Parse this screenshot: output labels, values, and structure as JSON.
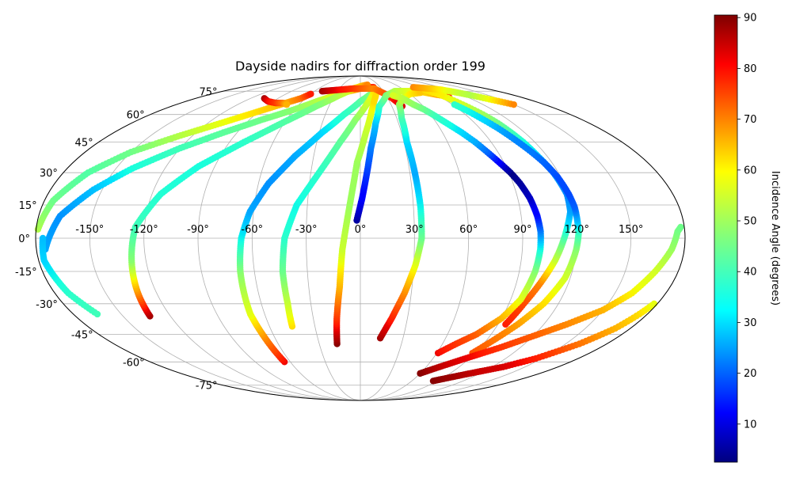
{
  "chart_data": {
    "type": "scatter",
    "projection": "mollweide",
    "title": "Dayside nadirs for diffraction order 199",
    "lon_ticks": [
      -150,
      -120,
      -90,
      -60,
      -30,
      0,
      30,
      60,
      90,
      120,
      150
    ],
    "lat_ticks": [
      -75,
      -60,
      -45,
      -30,
      -15,
      0,
      15,
      30,
      45,
      60,
      75
    ],
    "lon_tick_labels": [
      "-150°",
      "-120°",
      "-90°",
      "-60°",
      "-30°",
      "0°",
      "30°",
      "60°",
      "90°",
      "120°",
      "150°"
    ],
    "lat_tick_labels": [
      "-75°",
      "-60°",
      "-45°",
      "-30°",
      "-15°",
      "0°",
      "15°",
      "30°",
      "45°",
      "60°",
      "75°"
    ],
    "grid": true,
    "colorbar": {
      "label": "Incidence Angle (degrees)",
      "range": [
        2.5,
        90.5
      ],
      "colormap": "jet",
      "ticks": [
        10,
        20,
        30,
        40,
        50,
        60,
        70,
        80,
        90
      ],
      "tick_labels": [
        "10",
        "20",
        "30",
        "40",
        "50",
        "60",
        "70",
        "80",
        "90"
      ]
    },
    "series": [
      {
        "points": [
          [
            -179,
            4,
            52
          ],
          [
            -175,
            17,
            45
          ],
          [
            -165,
            30,
            42
          ],
          [
            -150,
            40,
            45
          ],
          [
            -130,
            48,
            52
          ],
          [
            -110,
            55,
            58
          ],
          [
            -90,
            62,
            62
          ],
          [
            -75,
            67,
            66
          ],
          [
            -65,
            70,
            72
          ],
          [
            -60,
            73,
            80
          ]
        ]
      },
      {
        "points": [
          [
            -175,
            -5,
            28
          ],
          [
            -168,
            10,
            26
          ],
          [
            -155,
            22,
            30
          ],
          [
            -140,
            32,
            36
          ],
          [
            -120,
            42,
            40
          ],
          [
            -100,
            50,
            43
          ],
          [
            -80,
            57,
            45
          ],
          [
            -60,
            63,
            48
          ],
          [
            -45,
            68,
            52
          ],
          [
            -30,
            72,
            58
          ],
          [
            -15,
            75,
            64
          ],
          [
            0,
            77,
            70
          ],
          [
            10,
            78,
            76
          ],
          [
            20,
            78,
            80
          ]
        ]
      },
      {
        "points": [
          [
            -165,
            -35,
            40
          ],
          [
            -172,
            -25,
            38
          ],
          [
            -177,
            -10,
            32
          ],
          [
            -176,
            0,
            30
          ]
        ]
      },
      {
        "points": [
          [
            -133,
            -36,
            88
          ],
          [
            -131,
            -25,
            70
          ],
          [
            -128,
            -10,
            48
          ],
          [
            -125,
            5,
            40
          ],
          [
            -115,
            20,
            37
          ],
          [
            -100,
            33,
            36
          ],
          [
            -80,
            45,
            38
          ],
          [
            -60,
            56,
            42
          ],
          [
            -42,
            65,
            46
          ],
          [
            -25,
            72,
            52
          ],
          [
            -10,
            77,
            58
          ],
          [
            2,
            79,
            64
          ],
          [
            12,
            80,
            70
          ]
        ]
      },
      {
        "points": [
          [
            -65,
            -60,
            82
          ],
          [
            -67,
            -47,
            70
          ],
          [
            -69,
            -35,
            58
          ],
          [
            -68,
            -15,
            48
          ],
          [
            -66,
            0,
            35
          ],
          [
            -62,
            12,
            28
          ],
          [
            -54,
            25,
            26
          ],
          [
            -42,
            38,
            28
          ],
          [
            -28,
            50,
            32
          ],
          [
            -14,
            60,
            38
          ],
          [
            0,
            68,
            42
          ],
          [
            10,
            72,
            46
          ],
          [
            20,
            75,
            48
          ]
        ]
      },
      {
        "points": [
          [
            -45,
            -41,
            62
          ],
          [
            -44,
            -30,
            55
          ],
          [
            -44,
            -15,
            45
          ],
          [
            -42,
            0,
            38
          ],
          [
            -36,
            15,
            35
          ],
          [
            -25,
            30,
            38
          ],
          [
            -14,
            45,
            43
          ],
          [
            -4,
            57,
            48
          ],
          [
            6,
            66,
            54
          ],
          [
            14,
            72,
            58
          ],
          [
            20,
            76,
            62
          ]
        ]
      },
      {
        "points": [
          [
            -17,
            -50,
            90
          ],
          [
            -15,
            -37,
            78
          ],
          [
            -12,
            -22,
            66
          ],
          [
            -10,
            -5,
            55
          ],
          [
            -6,
            15,
            50
          ],
          [
            -2,
            35,
            50
          ],
          [
            4,
            50,
            54
          ],
          [
            10,
            62,
            58
          ],
          [
            14,
            68,
            62
          ],
          [
            18,
            72,
            62
          ]
        ]
      },
      {
        "points": [
          [
            -105,
            70,
            88
          ],
          [
            -95,
            68,
            82
          ],
          [
            -85,
            67,
            78
          ],
          [
            -78,
            67,
            72
          ],
          [
            -72,
            66,
            66
          ]
        ]
      },
      {
        "points": [
          [
            -50,
            75,
            88
          ],
          [
            -30,
            76,
            82
          ],
          [
            -10,
            77,
            78
          ],
          [
            0,
            77,
            75
          ],
          [
            20,
            77,
            70
          ],
          [
            30,
            73,
            75
          ],
          [
            35,
            70,
            80
          ],
          [
            40,
            65,
            84
          ]
        ]
      },
      {
        "points": [
          [
            -2,
            8,
            5
          ],
          [
            1,
            18,
            12
          ],
          [
            4,
            30,
            18
          ],
          [
            7,
            42,
            24
          ],
          [
            12,
            55,
            30
          ],
          [
            18,
            65,
            38
          ],
          [
            30,
            72,
            46
          ],
          [
            45,
            75,
            52
          ],
          [
            60,
            75,
            56
          ],
          [
            75,
            75,
            60
          ],
          [
            88,
            73,
            65
          ],
          [
            95,
            72,
            72
          ],
          [
            100,
            71,
            78
          ]
        ]
      },
      {
        "points": [
          [
            14,
            -47,
            88
          ],
          [
            20,
            -37,
            80
          ],
          [
            26,
            -25,
            70
          ],
          [
            31,
            -12,
            58
          ],
          [
            34,
            0,
            45
          ],
          [
            34,
            14,
            35
          ],
          [
            33,
            30,
            28
          ],
          [
            32,
            45,
            32
          ],
          [
            34,
            58,
            40
          ],
          [
            38,
            66,
            48
          ],
          [
            46,
            70,
            55
          ],
          [
            60,
            73,
            60
          ],
          [
            76,
            74,
            64
          ]
        ]
      },
      {
        "points": [
          [
            95,
            -40,
            80
          ],
          [
            99,
            -30,
            76
          ],
          [
            104,
            -20,
            70
          ],
          [
            109,
            -10,
            55
          ],
          [
            113,
            0,
            42
          ],
          [
            115,
            5,
            35
          ],
          [
            118,
            12,
            28
          ],
          [
            119,
            20,
            25
          ],
          [
            117,
            30,
            28
          ],
          [
            114,
            38,
            32
          ],
          [
            112,
            45,
            36
          ],
          [
            110,
            50,
            40
          ],
          [
            108,
            55,
            45
          ],
          [
            105,
            60,
            50
          ],
          [
            100,
            66,
            55
          ],
          [
            95,
            72,
            60
          ],
          [
            88,
            76,
            62
          ]
        ]
      },
      {
        "points": [
          [
            88,
            -55,
            75
          ],
          [
            95,
            -48,
            72
          ],
          [
            103,
            -40,
            68
          ],
          [
            111,
            -30,
            62
          ],
          [
            117,
            -18,
            56
          ],
          [
            120,
            -5,
            48
          ],
          [
            121,
            2,
            40
          ],
          [
            121,
            8,
            30
          ],
          [
            121,
            14,
            22
          ],
          [
            120,
            20,
            20
          ],
          [
            118,
            28,
            20
          ],
          [
            115,
            35,
            22
          ],
          [
            112,
            40,
            24
          ],
          [
            108,
            46,
            25
          ],
          [
            104,
            52,
            28
          ],
          [
            100,
            57,
            32
          ],
          [
            96,
            62,
            35
          ],
          [
            92,
            66,
            38
          ]
        ]
      },
      {
        "points": [
          [
            61,
            -55,
            82
          ],
          [
            70,
            -50,
            78
          ],
          [
            80,
            -45,
            74
          ],
          [
            90,
            -37,
            66
          ],
          [
            96,
            -28,
            58
          ],
          [
            99,
            -15,
            48
          ],
          [
            100,
            -5,
            36
          ],
          [
            100,
            3,
            25
          ],
          [
            99,
            10,
            15
          ],
          [
            97,
            18,
            8
          ],
          [
            94,
            25,
            5
          ],
          [
            91,
            30,
            3
          ],
          [
            87,
            35,
            12
          ],
          [
            83,
            40,
            22
          ],
          [
            79,
            45,
            28
          ],
          [
            74,
            50,
            32
          ],
          [
            68,
            55,
            36
          ],
          [
            62,
            60,
            40
          ],
          [
            58,
            63,
            44
          ],
          [
            52,
            66,
            48
          ],
          [
            46,
            70,
            52
          ],
          [
            38,
            72,
            56
          ]
        ]
      },
      {
        "points": [
          [
            60,
            -67,
            90
          ],
          [
            75,
            -62,
            85
          ],
          [
            90,
            -57,
            82
          ],
          [
            105,
            -52,
            78
          ],
          [
            120,
            -46,
            74
          ],
          [
            135,
            -40,
            70
          ],
          [
            150,
            -33,
            66
          ],
          [
            160,
            -25,
            60
          ],
          [
            167,
            -15,
            56
          ],
          [
            173,
            -5,
            50
          ],
          [
            176,
            3,
            46
          ],
          [
            178,
            5,
            45
          ]
        ]
      },
      {
        "points": [
          [
            85,
            -72,
            90
          ],
          [
            100,
            -69,
            88
          ],
          [
            115,
            -66,
            85
          ],
          [
            130,
            -63,
            84
          ],
          [
            145,
            -58,
            80
          ],
          [
            160,
            -50,
            72
          ],
          [
            170,
            -42,
            66
          ],
          [
            175,
            -35,
            62
          ],
          [
            178,
            -30,
            58
          ]
        ]
      },
      {
        "points": [
          [
            80,
            78,
            70
          ],
          [
            100,
            77,
            65
          ],
          [
            112,
            76,
            60
          ],
          [
            122,
            74,
            55
          ],
          [
            130,
            72,
            52
          ],
          [
            140,
            69,
            60
          ],
          [
            150,
            66,
            70
          ]
        ]
      }
    ]
  }
}
